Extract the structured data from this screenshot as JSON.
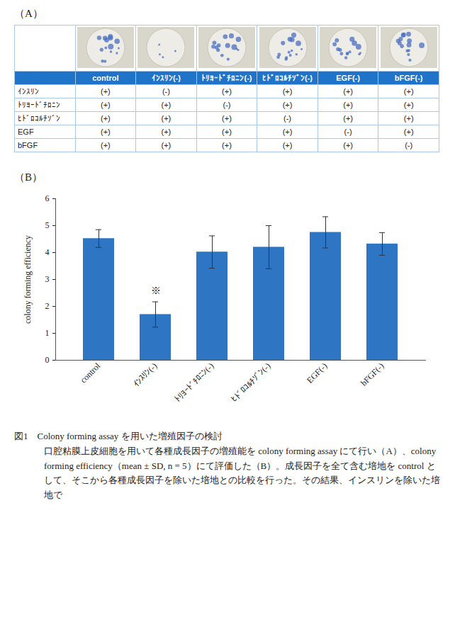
{
  "panel_a": {
    "label": "（A）",
    "table": {
      "header": [
        "",
        "control",
        "ｲﾝｽﾘﾝ(-)",
        "ﾄﾘﾖｰﾄﾞﾁﾛﾆﾝ(-)",
        "ﾋﾄﾞﾛｺﾙﾁｿﾞﾝ(-)",
        "EGF(-)",
        "bFGF(-)"
      ],
      "rows": [
        [
          "ｲﾝｽﾘﾝ",
          "(+)",
          "(-)",
          "(+)",
          "(+)",
          "(+)",
          "(+)"
        ],
        [
          "ﾄﾘﾖｰﾄﾞﾁﾛﾆﾝ",
          "(+)",
          "(+)",
          "(-)",
          "(+)",
          "(+)",
          "(+)"
        ],
        [
          "ﾋﾄﾞﾛｺﾙﾁｿﾞﾝ",
          "(+)",
          "(+)",
          "(+)",
          "(-)",
          "(+)",
          "(+)"
        ],
        [
          "EGF",
          "(+)",
          "(+)",
          "(+)",
          "(+)",
          "(-)",
          "(+)"
        ],
        [
          "bFGF",
          "(+)",
          "(+)",
          "(+)",
          "(+)",
          "(+)",
          "(-)"
        ]
      ]
    }
  },
  "panel_b": {
    "label": "（B）"
  },
  "chart_data": {
    "type": "bar",
    "categories": [
      "control",
      "ｲﾝｽﾘﾝ(-)",
      "ﾄﾘﾖｰﾄﾞﾁﾛﾆﾝ(-)",
      "ﾋﾄﾞﾛｺﾙﾁｿﾞﾝ(-)",
      "EGF(-)",
      "bFGF(-)"
    ],
    "values": [
      4.52,
      1.7,
      4.02,
      4.2,
      4.75,
      4.32
    ],
    "errors": [
      0.33,
      0.47,
      0.6,
      0.8,
      0.58,
      0.42
    ],
    "color": "#2e75c4",
    "y_label": "colony forming efficiency",
    "ylim": [
      0,
      6
    ],
    "yticks": [
      0,
      1,
      2,
      3,
      4,
      5,
      6
    ],
    "grid": false,
    "annotations": [
      {
        "text": "※",
        "category": "ｲﾝｽﾘﾝ(-)"
      }
    ]
  },
  "caption": {
    "title": "図1　Colony forming assay を用いた増殖因子の検討",
    "text": "口腔粘膜上皮細胞を用いて各種成長因子の増殖能を colony forming assay にて行い（A）、colony forming efficiency（mean ± SD, n = 5）にて評価した（B）。成長因子を全て含む培地を control として、そこから各種成長因子を除いた培地との比較を行った。その結果、インスリンを除いた培地で"
  }
}
